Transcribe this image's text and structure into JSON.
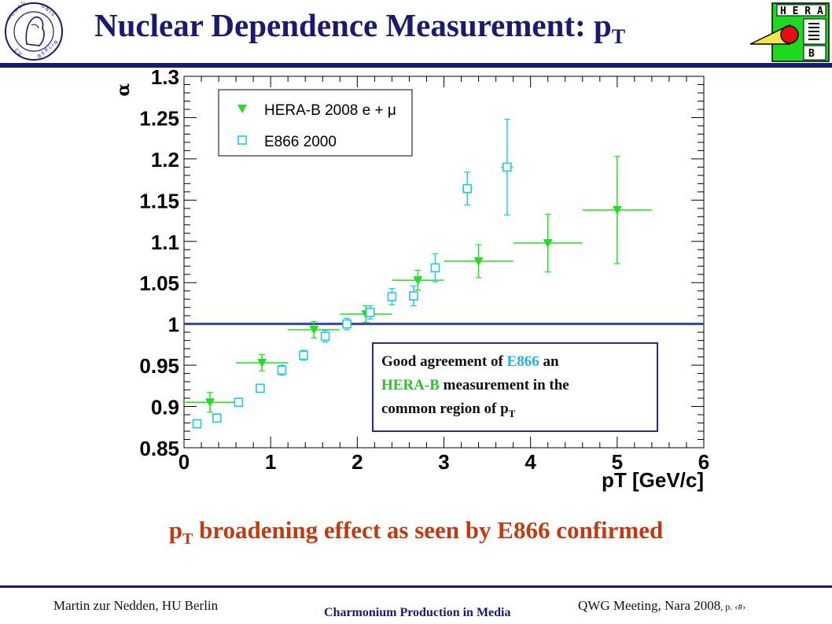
{
  "slide": {
    "title": "Nuclear Dependence Measurement: p",
    "title_sub": "T",
    "conclusion": "p",
    "conclusion_sub": "T",
    "conclusion_rest": " broadening effect as seen by E866 confirmed",
    "note": {
      "line1_a": "Good agreement of ",
      "line1_b": "E866",
      "line1_c": " an",
      "line2_a": "HERA-B",
      "line2_b": " measurement in the",
      "line3_a": "common region of p",
      "line3_sub": "T"
    },
    "footer_left": "Martin zur Nedden, HU Berlin",
    "footer_center": "Charmonium Production in Media",
    "footer_right": "QWG Meeting, Nara 2008",
    "footer_right_page": ", p. ‹#›",
    "hera_logo_letters": [
      "H",
      "E",
      "R",
      "A",
      "B"
    ],
    "colors": {
      "title": "#1a1a6e",
      "conclusion": "#c03a12",
      "hera_b": "#22dd22",
      "e866": "#22c8e8",
      "reference_line": "#3344aa"
    }
  },
  "chart_data": {
    "type": "scatter",
    "xlabel": "pT [GeV/c]",
    "ylabel": "α",
    "xlim": [
      0,
      6
    ],
    "ylim": [
      0.85,
      1.3
    ],
    "x_ticks": [
      "0",
      "1",
      "2",
      "3",
      "4",
      "5",
      "6"
    ],
    "y_ticks": [
      "0.85",
      "0.9",
      "0.95",
      "1",
      "1.05",
      "1.1",
      "1.15",
      "1.2",
      "1.25",
      "1.3"
    ],
    "reference_line": 1.0,
    "legend_position": "top-left",
    "series": [
      {
        "name": "HERA-B 2008 e + μ",
        "marker": "triangle-down",
        "points": [
          {
            "x": 0.3,
            "y": 0.905,
            "xerr": 0.3,
            "yerr": 0.012
          },
          {
            "x": 0.9,
            "y": 0.953,
            "xerr": 0.3,
            "yerr": 0.01
          },
          {
            "x": 1.5,
            "y": 0.993,
            "xerr": 0.3,
            "yerr": 0.01
          },
          {
            "x": 2.1,
            "y": 1.012,
            "xerr": 0.3,
            "yerr": 0.01
          },
          {
            "x": 2.7,
            "y": 1.053,
            "xerr": 0.3,
            "yerr": 0.012
          },
          {
            "x": 3.4,
            "y": 1.076,
            "xerr": 0.4,
            "yerr": 0.02
          },
          {
            "x": 4.2,
            "y": 1.098,
            "xerr": 0.4,
            "yerr": 0.035
          },
          {
            "x": 5.0,
            "y": 1.138,
            "xerr": 0.4,
            "yerr": 0.065
          }
        ]
      },
      {
        "name": "E866 2000",
        "marker": "open-square",
        "points": [
          {
            "x": 0.15,
            "y": 0.879,
            "xerr": 0.05,
            "yerr": 0.005
          },
          {
            "x": 0.38,
            "y": 0.886,
            "xerr": 0.05,
            "yerr": 0.005
          },
          {
            "x": 0.63,
            "y": 0.905,
            "xerr": 0.05,
            "yerr": 0.005
          },
          {
            "x": 0.88,
            "y": 0.922,
            "xerr": 0.05,
            "yerr": 0.005
          },
          {
            "x": 1.13,
            "y": 0.944,
            "xerr": 0.05,
            "yerr": 0.006
          },
          {
            "x": 1.38,
            "y": 0.962,
            "xerr": 0.05,
            "yerr": 0.006
          },
          {
            "x": 1.63,
            "y": 0.985,
            "xerr": 0.05,
            "yerr": 0.007
          },
          {
            "x": 1.88,
            "y": 1.0,
            "xerr": 0.05,
            "yerr": 0.007
          },
          {
            "x": 2.15,
            "y": 1.014,
            "xerr": 0.05,
            "yerr": 0.008
          },
          {
            "x": 2.4,
            "y": 1.033,
            "xerr": 0.05,
            "yerr": 0.01
          },
          {
            "x": 2.65,
            "y": 1.034,
            "xerr": 0.05,
            "yerr": 0.012
          },
          {
            "x": 2.9,
            "y": 1.068,
            "xerr": 0.05,
            "yerr": 0.017
          },
          {
            "x": 3.27,
            "y": 1.164,
            "xerr": 0.06,
            "yerr": 0.02
          },
          {
            "x": 3.73,
            "y": 1.19,
            "xerr": 0.07,
            "yerr": 0.058
          }
        ]
      }
    ]
  }
}
